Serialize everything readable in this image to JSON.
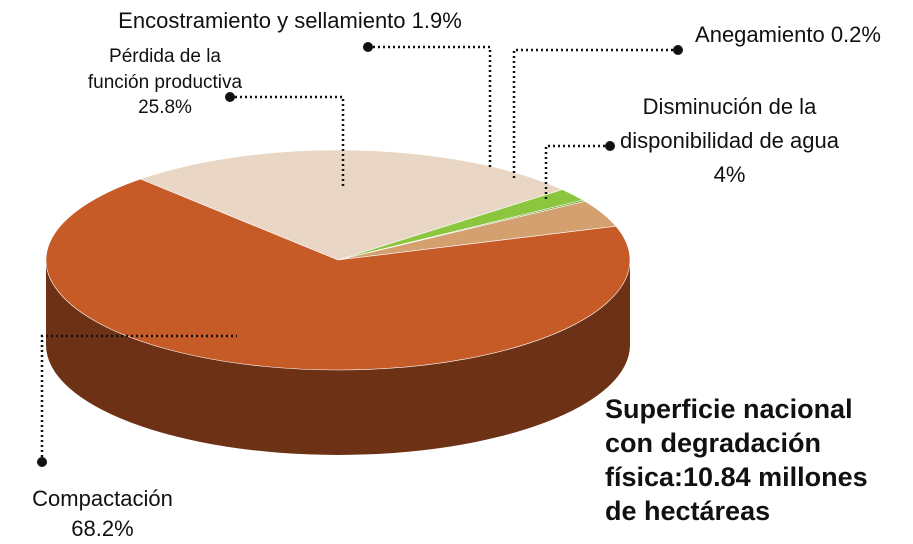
{
  "chart_data": {
    "type": "pie",
    "title": "Superficie nacional con degradación física:10.84 millones de hectáreas",
    "categories": [
      "Pérdida de la función productiva",
      "Encostramiento y sellamiento",
      "Anegamiento",
      "Disminución de la disponibilidad de agua",
      "Compactación"
    ],
    "values": [
      25.8,
      1.9,
      0.2,
      4,
      68.2
    ],
    "value_labels": [
      "25.8%",
      "1.9%",
      "0.2%",
      "4%",
      "68.2%"
    ],
    "colors": [
      "#e9d6c4",
      "#8cc63f",
      "#5f9e2a",
      "#d5a070",
      "#c65b27"
    ]
  }
}
